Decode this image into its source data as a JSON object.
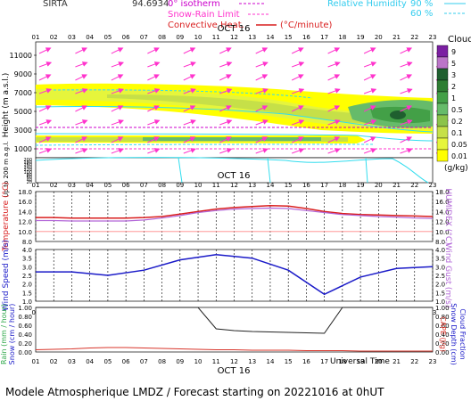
{
  "header": {
    "station": "SIRTA",
    "station_code": "94.6934",
    "legend_isotherm": "0° isotherm",
    "legend_snowrain": "Snow-Rain Limit",
    "legend_convective": "Convective Heat.",
    "legend_units": "(°C/minute)",
    "legend_rh": "Relative Humidity",
    "rh_90": "90 %",
    "rh_60": "60 %"
  },
  "date_label": "OCT 16",
  "hours": [
    "01",
    "02",
    "03",
    "04",
    "05",
    "06",
    "07",
    "08",
    "09",
    "10",
    "11",
    "12",
    "13",
    "14",
    "15",
    "16",
    "17",
    "18",
    "19",
    "20",
    "21",
    "22",
    "23"
  ],
  "footer": {
    "universal_time": "Universal Time",
    "caption": "Modele Atmospherique LMDZ / Forecast starting on 20221016 at 0hUT"
  },
  "clouds_legend": {
    "title": "Clouds",
    "unit": "(g/kg)",
    "levels": [
      "9",
      "5",
      "3",
      "2",
      "1",
      "0.5",
      "0.2",
      "0.1",
      "0.05",
      "0.01"
    ],
    "colors": [
      "#7b1fa2",
      "#bc75c9",
      "#1f5f2f",
      "#2e7d32",
      "#43a047",
      "#66bb6a",
      "#8bc34a",
      "#c6e048",
      "#e6f53c",
      "#ffff00"
    ]
  },
  "colors": {
    "temperature": "#d91e1e",
    "humidex": "#b266d8",
    "wind": "#1a1ac8",
    "rain": "#d8342a",
    "cloud_fraction": "#222222",
    "wind_arrow": "#ff33cc",
    "rh_line": "#33ddee"
  },
  "chart_data": [
    {
      "type": "heatmap",
      "title": "Clouds",
      "ylabel": "Height (m a.s.l.)",
      "ylabel2": "Up to 200 m a.g.l.",
      "yticks_upper": [
        "11000",
        "9000",
        "7000",
        "5000",
        "3000",
        "1000"
      ],
      "yticks_lower": [
        "200",
        "180",
        "160",
        "140",
        "120",
        "100",
        "80",
        "60",
        "40",
        "20"
      ],
      "x": [
        "01",
        "02",
        "03",
        "04",
        "05",
        "06",
        "07",
        "08",
        "09",
        "10",
        "11",
        "12",
        "13",
        "14",
        "15",
        "16",
        "17",
        "18",
        "19",
        "20",
        "21",
        "22",
        "23"
      ],
      "colorbar_levels": [
        "9",
        "5",
        "3",
        "2",
        "1",
        "0.5",
        "0.2",
        "0.1",
        "0.05",
        "0.01"
      ],
      "colorbar_unit": "(g/kg)"
    },
    {
      "type": "line",
      "ylabel": "Temperature (°C)",
      "ylabel2": "HUMIDEX (°C)",
      "yticks": [
        "18.0",
        "16.0",
        "14.0",
        "12.0",
        "10.0",
        "8.0"
      ],
      "ylim": [
        8,
        18
      ],
      "x": [
        "01",
        "02",
        "03",
        "04",
        "05",
        "06",
        "07",
        "08",
        "09",
        "10",
        "11",
        "12",
        "13",
        "14",
        "15",
        "16",
        "17",
        "18",
        "19",
        "20",
        "21",
        "22",
        "23"
      ],
      "series": [
        {
          "name": "Temperature",
          "values": [
            12.8,
            12.8,
            12.7,
            12.7,
            12.7,
            12.7,
            12.8,
            13.0,
            13.5,
            14.0,
            14.5,
            14.8,
            15.0,
            15.2,
            15.1,
            14.6,
            14.0,
            13.6,
            13.4,
            13.3,
            13.2,
            13.1,
            13.0
          ]
        },
        {
          "name": "HUMIDEX",
          "values": [
            12.2,
            12.2,
            12.1,
            12.1,
            12.1,
            12.1,
            12.3,
            12.7,
            13.2,
            13.8,
            14.2,
            14.5,
            14.6,
            14.7,
            14.6,
            14.2,
            13.8,
            13.4,
            13.2,
            13.0,
            12.9,
            12.7,
            12.6
          ]
        }
      ]
    },
    {
      "type": "line",
      "ylabel": "Wind Speed (m/s)",
      "ylabel2": "Wind Gust (m/s)",
      "yticks": [
        "4.0",
        "3.5",
        "3.0",
        "2.5",
        "2.0",
        "1.5",
        "1.0"
      ],
      "ylim": [
        1.0,
        4.0
      ],
      "x": [
        "01",
        "03",
        "05",
        "07",
        "09",
        "11",
        "13",
        "15",
        "17",
        "19",
        "21",
        "23"
      ],
      "series": [
        {
          "name": "Wind Speed",
          "values": [
            2.7,
            2.7,
            2.5,
            2.8,
            3.4,
            3.7,
            3.5,
            2.8,
            1.4,
            2.4,
            2.9,
            3.0
          ]
        }
      ]
    },
    {
      "type": "line",
      "ylabel": "Rain (mm / hour)",
      "ylabel_snow": "Snow (cm / hour)",
      "ylabel2": "CAPE (J/g)",
      "ylabel3": "Snow Depth (cm)",
      "ylabel4": "Cloud Fraction",
      "yticks": [
        "1.00",
        "0.80",
        "0.60",
        "0.40",
        "0.20",
        "0.00"
      ],
      "ylim": [
        0,
        1
      ],
      "x": [
        "01",
        "02",
        "03",
        "04",
        "05",
        "06",
        "07",
        "08",
        "09",
        "10",
        "11",
        "12",
        "13",
        "14",
        "15",
        "16",
        "17",
        "18",
        "19",
        "20",
        "21",
        "22",
        "23"
      ],
      "series": [
        {
          "name": "Cloud Fraction",
          "values": [
            1.0,
            1.0,
            1.0,
            1.0,
            1.0,
            1.0,
            1.0,
            1.0,
            1.0,
            1.0,
            0.52,
            0.48,
            0.46,
            0.45,
            0.44,
            0.43,
            0.42,
            1.0,
            1.0,
            1.0,
            1.0,
            1.0,
            1.0
          ]
        },
        {
          "name": "CAPE",
          "values": [
            0.05,
            0.06,
            0.07,
            0.09,
            0.1,
            0.1,
            0.09,
            0.08,
            0.07,
            0.06,
            0.05,
            0.05,
            0.04,
            0.04,
            0.04,
            0.03,
            0.03,
            0.03,
            0.02,
            0.02,
            0.02,
            0.02,
            0.02
          ]
        }
      ]
    }
  ]
}
